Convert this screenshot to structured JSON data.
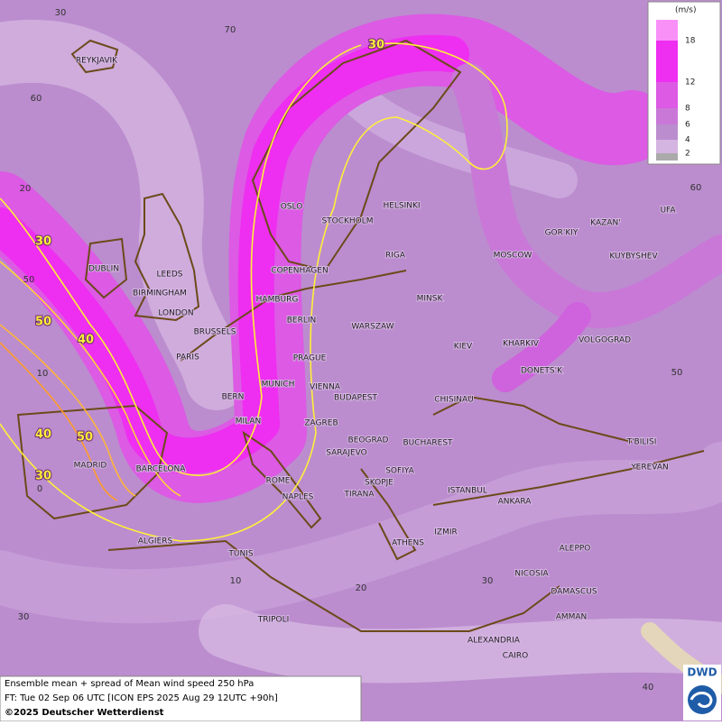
{
  "map": {
    "cities": [
      "REYKJAVIK",
      "OSLO",
      "STOCKHOLM",
      "HELSINKI",
      "RIGA",
      "MOSCOW",
      "GOR'KIY",
      "KAZAN'",
      "UFA",
      "KUYBYSHEV",
      "DUBLIN",
      "LEEDS",
      "BIRMINGHAM",
      "LONDON",
      "COPENHAGEN",
      "HAMBURG",
      "MINSK",
      "BERLIN",
      "WARSZAW",
      "BRUSSELS",
      "KIEV",
      "KHARKIV",
      "VOLGOGRAD",
      "PARIS",
      "PRAGUE",
      "DONETS'K",
      "MUNICH",
      "VIENNA",
      "BERN",
      "BUDAPEST",
      "CHISINAU",
      "MILAN",
      "ZAGREB",
      "BEOGRAD",
      "BUCHAREST",
      "T'BILISI",
      "SARAJEVO",
      "MADRID",
      "BARCELONA",
      "YEREVAN",
      "SOFIYA",
      "ROME",
      "SKOPJE",
      "TIRANA",
      "ISTANBUL",
      "NAPLES",
      "ANKARA",
      "IZMIR",
      "ALGIERS",
      "ATHENS",
      "ALEPPO",
      "TUNIS",
      "NICOSIA",
      "DAMASCUS",
      "AMMAN",
      "TRIPOLI",
      "ALEXANDRIA",
      "CAIRO"
    ],
    "grid_labels": [
      30,
      70,
      60,
      20,
      60,
      50,
      50,
      10,
      0,
      10,
      20,
      30,
      30,
      40
    ],
    "contour_labels": [
      30,
      30,
      50,
      40,
      40,
      50,
      30
    ]
  },
  "legend": {
    "unit": "(m/s)",
    "ticks": [
      18,
      12,
      8,
      6,
      4,
      2
    ]
  },
  "footer": {
    "line1": "Ensemble mean + spread of Mean wind speed 250 hPa",
    "line2": "FT: Tue 02 Sep 06 UTC [ICON EPS 2025 Aug 29 12UTC +90h]",
    "line3": "©2025 Deutscher Wetterdienst",
    "logo": "DWD"
  }
}
